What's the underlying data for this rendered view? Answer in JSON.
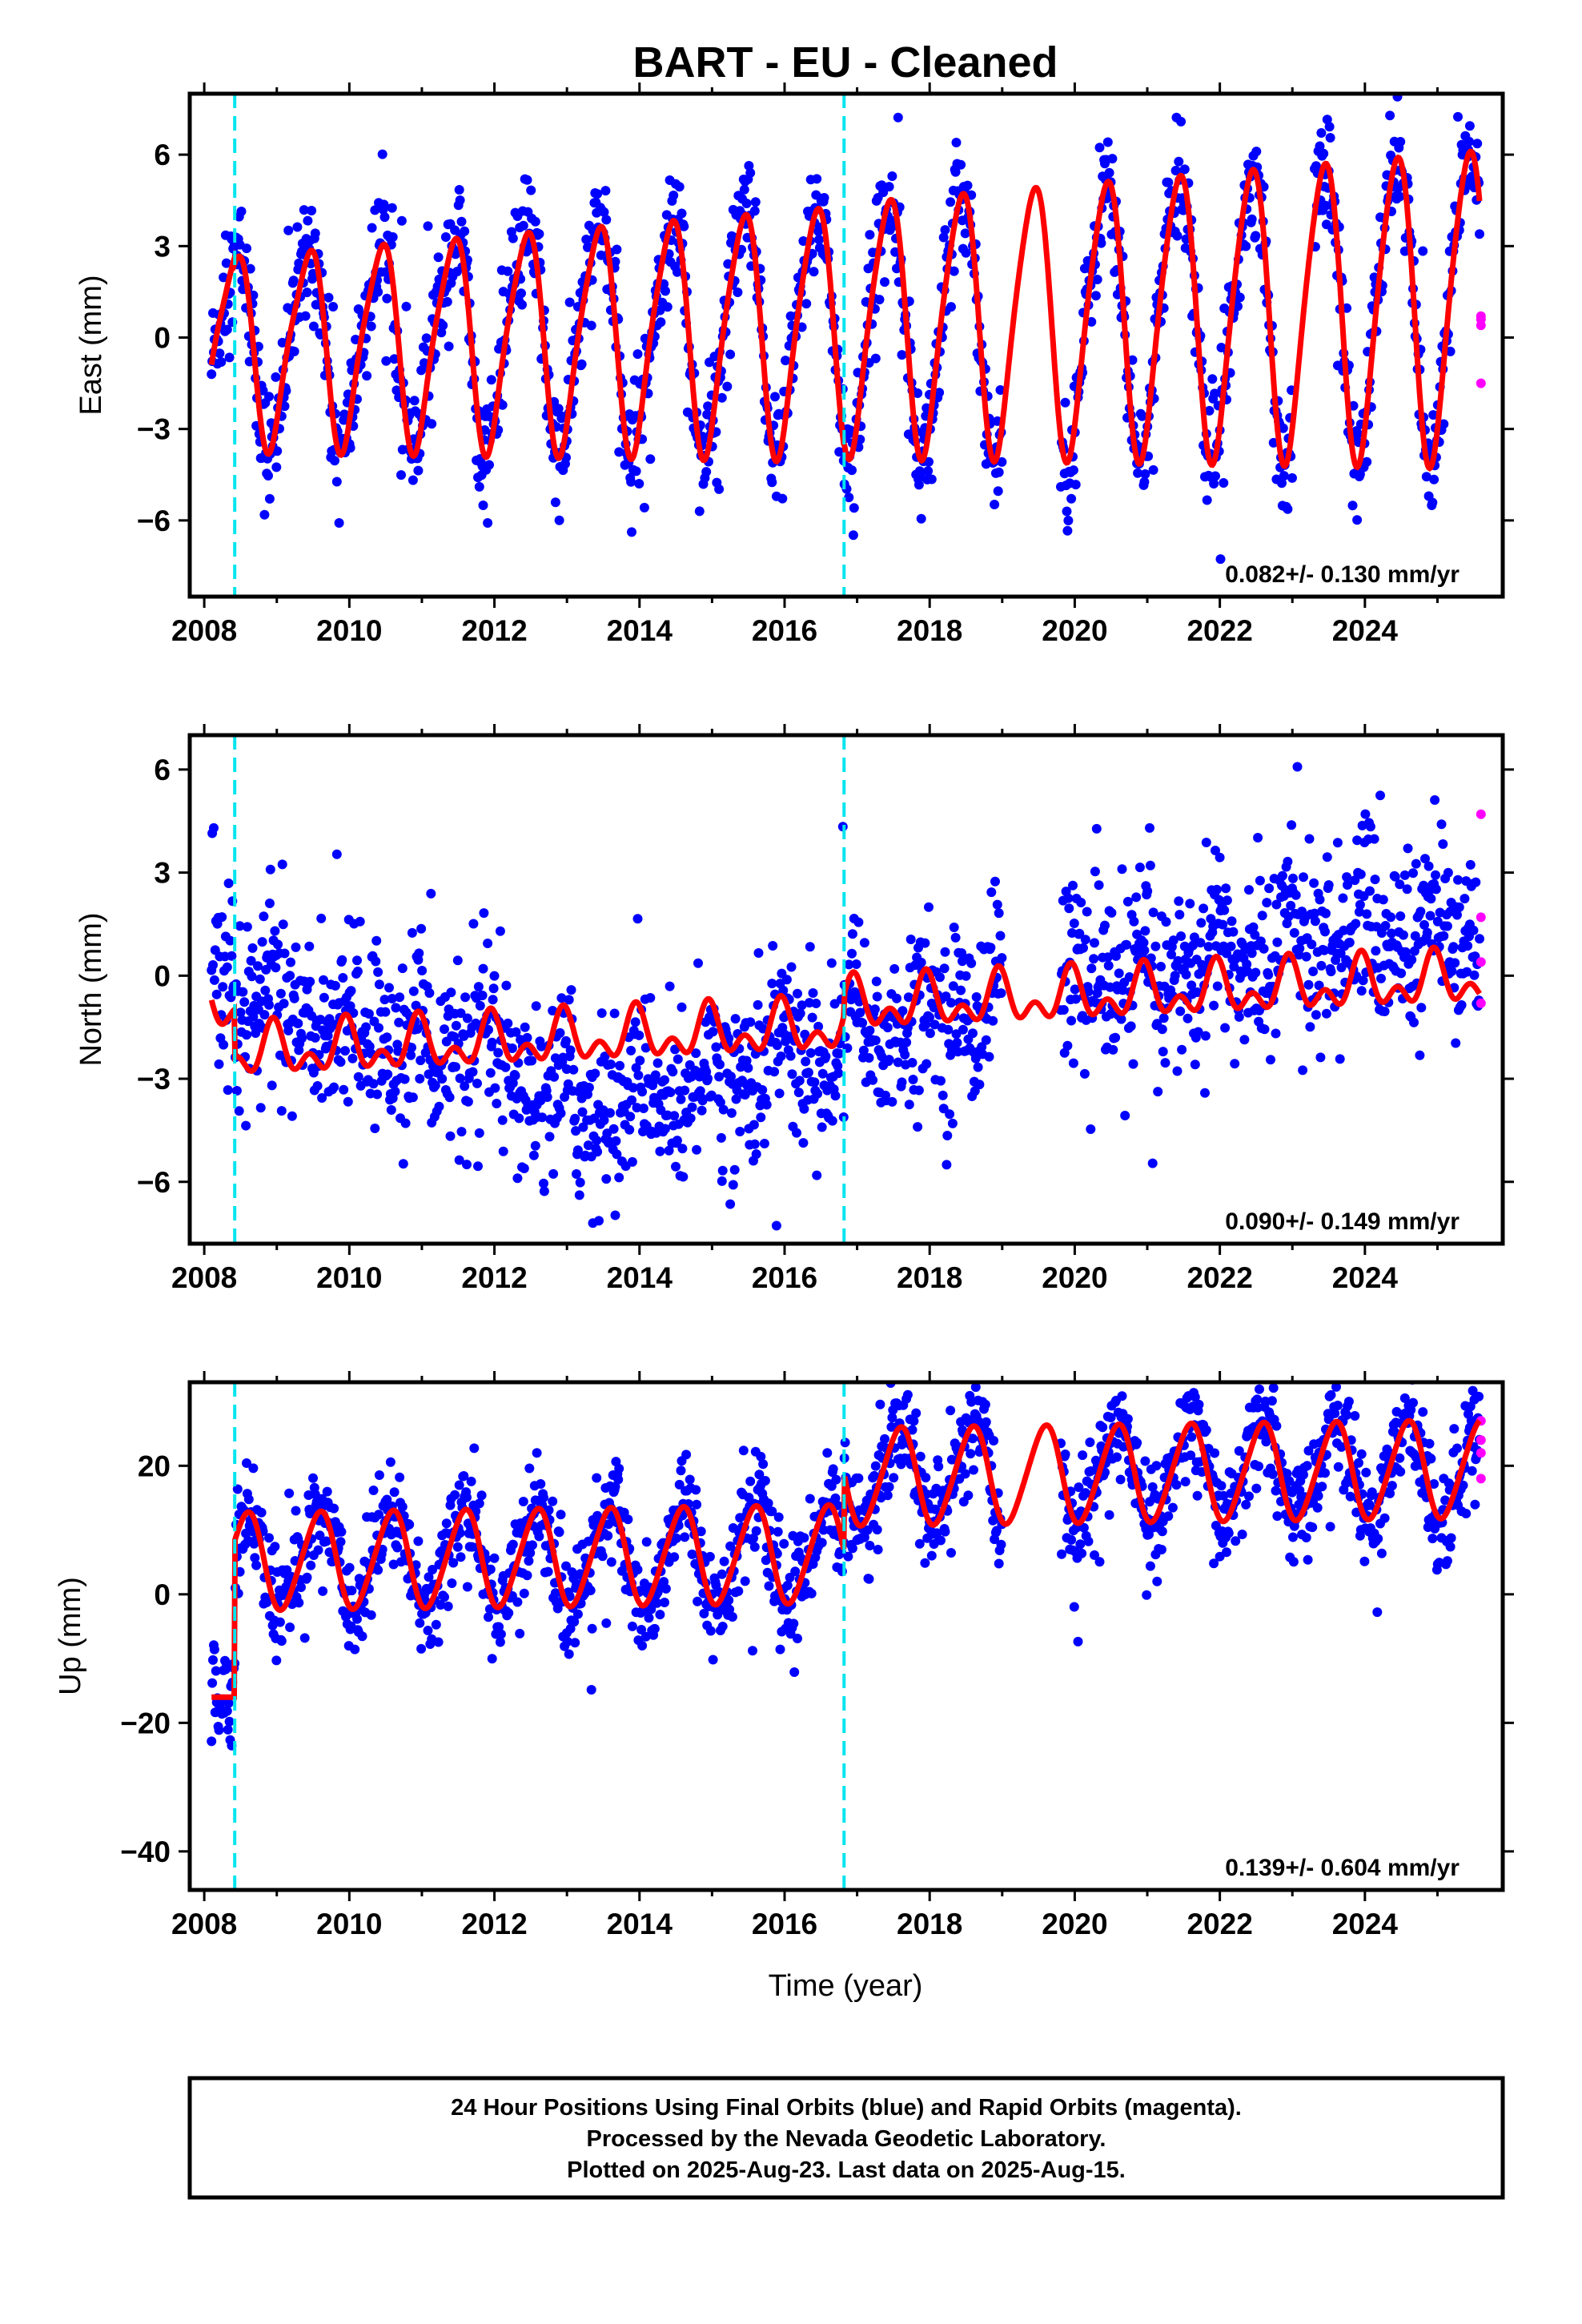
{
  "title": "BART  - EU - Cleaned",
  "xlabel": "Time (year)",
  "colors": {
    "final_orbits": "#0000ff",
    "rapid_orbits": "#ff00ff",
    "model": "#ff0000",
    "breaks": "#00e5ee"
  },
  "footer": {
    "line1": "24 Hour Positions Using Final Orbits (blue) and Rapid Orbits (magenta).",
    "line2": "Processed by the Nevada Geodetic Laboratory.",
    "line3": "Plotted on 2025-Aug-23. Last data on 2025-Aug-15."
  },
  "chart_data": [
    {
      "type": "scatter",
      "panel": "east",
      "title": "BART  - EU - Cleaned",
      "ylabel": "East (mm)",
      "xlabel": "",
      "xlim": [
        2007.8,
        2025.9
      ],
      "ylim": [
        -8.5,
        8.0
      ],
      "xticks": [
        2008,
        2010,
        2012,
        2014,
        2016,
        2018,
        2020,
        2022,
        2024
      ],
      "yticks": [
        6,
        3,
        0,
        -3,
        -6
      ],
      "ytick_labels": [
        "6",
        "3",
        "0",
        "−3",
        "−6"
      ],
      "rate_label": "0.082+/- 0.130 mm/yr",
      "breaks": [
        2008.42,
        2016.82
      ],
      "data_gaps": [
        [
          2019.0,
          2019.8
        ],
        [
          2023.0,
          2023.3
        ]
      ],
      "model": {
        "trend": {
          "intercept_2008": -0.2,
          "rate_mm_per_yr": 0.082
        },
        "annual": {
          "amplitude": 3.0,
          "amplitude_growth_per_yr": 0.04,
          "peak_phase_year": 0.42
        },
        "semiannual": {
          "amplitude": 0.6,
          "peak_phase_year": 0.08
        },
        "offsets": [
          {
            "epoch": 2008.42,
            "size": -0.2
          },
          {
            "epoch": 2016.82,
            "size": 0.1
          }
        ],
        "start": 2008.1,
        "end": 2025.58,
        "scatter_sigma_mm": 1.0
      },
      "series": [
        {
          "name": "Final Orbits (blue)",
          "style": "points",
          "sample_years": [
            2008.1,
            2025.58
          ]
        },
        {
          "name": "Rapid Orbits (magenta)",
          "style": "points",
          "x": [
            2025.6,
            2025.6,
            2025.6,
            2025.6
          ],
          "y": [
            0.4,
            0.7,
            0.6,
            -1.5
          ]
        },
        {
          "style": "line"
        }
      ]
    },
    {
      "type": "scatter",
      "panel": "north",
      "title": "",
      "ylabel": "North (mm)",
      "xlabel": "",
      "xlim": [
        2007.8,
        2025.9
      ],
      "ylim": [
        -7.8,
        7.0
      ],
      "xticks": [
        2008,
        2010,
        2012,
        2014,
        2016,
        2018,
        2020,
        2022,
        2024
      ],
      "yticks": [
        6,
        3,
        0,
        -3,
        -6
      ],
      "ytick_labels": [
        "6",
        "3",
        "0",
        "−3",
        "−6"
      ],
      "rate_label": "0.090+/- 0.149 mm/yr",
      "breaks": [
        2008.42,
        2016.82
      ],
      "data_gaps": [
        [
          2019.0,
          2019.8
        ]
      ],
      "model": {
        "trend": {
          "intercept_2008": -0.9,
          "rate_mm_per_yr": 0.09
        },
        "annual": {
          "amplitude": 0.55,
          "amplitude_growth_per_yr": 0.0,
          "peak_phase_year": 0.95
        },
        "semiannual": {
          "amplitude": 0.45,
          "peak_phase_year": 0.45
        },
        "offsets": [
          {
            "epoch": 2008.42,
            "size": -1.4
          },
          {
            "epoch": 2016.82,
            "size": 0.6
          }
        ],
        "start": 2008.1,
        "end": 2025.58,
        "scatter_sigma_mm": 1.3,
        "data_drift": [
          [
            2008.1,
            1.0
          ],
          [
            2010.0,
            0.0
          ],
          [
            2012.0,
            -1.2
          ],
          [
            2013.5,
            -2.5
          ],
          [
            2014.5,
            -2.0
          ],
          [
            2016.0,
            -0.8
          ],
          [
            2017.5,
            -0.8
          ],
          [
            2019.0,
            0.3
          ],
          [
            2020.5,
            0.6
          ],
          [
            2022.0,
            1.2
          ],
          [
            2024.0,
            2.3
          ],
          [
            2025.6,
            1.8
          ]
        ]
      },
      "series": [
        {
          "name": "Final Orbits (blue)",
          "style": "points",
          "sample_years": [
            2008.1,
            2025.58
          ]
        },
        {
          "name": "Rapid Orbits (magenta)",
          "style": "points",
          "x": [
            2025.6,
            2025.6,
            2025.6,
            2025.6
          ],
          "y": [
            4.7,
            1.7,
            0.4,
            -0.8
          ]
        },
        {
          "style": "line"
        }
      ]
    },
    {
      "type": "scatter",
      "panel": "up",
      "title": "",
      "ylabel": "Up (mm)",
      "xlabel": "Time (year)",
      "xlim": [
        2007.8,
        2025.9
      ],
      "ylim": [
        -46,
        33
      ],
      "xticks": [
        2008,
        2010,
        2012,
        2014,
        2016,
        2018,
        2020,
        2022,
        2024
      ],
      "yticks": [
        20,
        0,
        -20,
        -40
      ],
      "ytick_labels": [
        "20",
        "0",
        "−20",
        "−40"
      ],
      "rate_label": "0.139+/- 0.604 mm/yr",
      "breaks": [
        2008.42,
        2016.82
      ],
      "data_gaps": [
        [
          2019.0,
          2019.8
        ]
      ],
      "model": {
        "trend": {
          "intercept_2008": -5.5,
          "rate_mm_per_yr": 0.139
        },
        "annual": {
          "amplitude": 7.5,
          "amplitude_growth_per_yr": 0.0,
          "peak_phase_year": 0.58
        },
        "semiannual": {
          "amplitude": 0.8,
          "peak_phase_year": 0.2
        },
        "offsets": [
          {
            "epoch": 2008.42,
            "size": 10.5
          },
          {
            "epoch": 2016.82,
            "size": 12.0
          }
        ],
        "pre_first_offset_level": -16.0,
        "start": 2008.1,
        "end": 2025.58,
        "scatter_sigma_mm": 4.2
      },
      "series": [
        {
          "name": "Final Orbits (blue)",
          "style": "points",
          "sample_years": [
            2008.1,
            2025.58
          ]
        },
        {
          "name": "Rapid Orbits (magenta)",
          "style": "points",
          "x": [
            2025.6,
            2025.6,
            2025.6,
            2025.6
          ],
          "y": [
            27,
            24,
            22,
            18
          ]
        },
        {
          "style": "line"
        }
      ]
    }
  ]
}
